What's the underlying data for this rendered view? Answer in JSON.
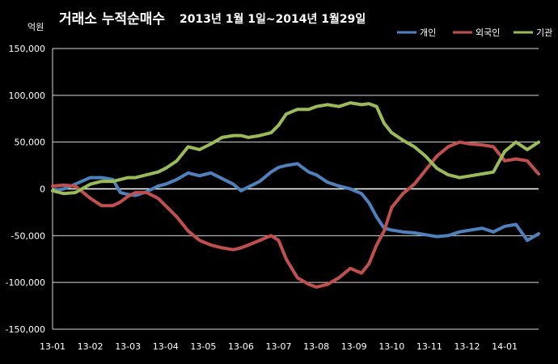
{
  "chart_data": {
    "type": "line",
    "title": "거래소  누적순매수",
    "subtitle": "2013년 1월 1일~2014년 1월29일",
    "ylabel": "억원",
    "xlabel": "",
    "ylim": [
      -150000,
      150000
    ],
    "yticks": [
      "150,000",
      "100,000",
      "50,000",
      "0",
      "-50,000",
      "-100,000",
      "-150,000"
    ],
    "ytick_values": [
      150000,
      100000,
      50000,
      0,
      -50000,
      -100000,
      -150000
    ],
    "categories": [
      "13-01",
      "13-02",
      "13-03",
      "13-04",
      "13-05",
      "13-06",
      "13-07",
      "13-08",
      "13-09",
      "13-10",
      "13-11",
      "13-12",
      "14-01"
    ],
    "grid": true,
    "legend": "top-right",
    "series": [
      {
        "name": "개인",
        "color": "#4f81bd",
        "x": [
          0,
          0.3,
          0.6,
          1.0,
          1.3,
          1.6,
          1.8,
          2.0,
          2.2,
          2.5,
          2.8,
          3.0,
          3.3,
          3.6,
          3.9,
          4.2,
          4.5,
          4.8,
          5.0,
          5.2,
          5.5,
          5.8,
          6.0,
          6.2,
          6.5,
          6.8,
          7.0,
          7.3,
          7.6,
          7.9,
          8.2,
          8.4,
          8.6,
          8.8,
          9.0,
          9.3,
          9.6,
          9.9,
          10.2,
          10.5,
          10.8,
          11.1,
          11.4,
          11.7,
          12.0,
          12.3,
          12.6,
          12.9
        ],
        "values": [
          -2000,
          0,
          5000,
          12000,
          12000,
          10000,
          -4000,
          -6000,
          -7000,
          -3000,
          3000,
          5000,
          10000,
          17000,
          14000,
          17000,
          11000,
          5000,
          -2000,
          2000,
          8000,
          18000,
          23000,
          25000,
          27000,
          18000,
          15000,
          7000,
          3000,
          0,
          -5000,
          -15000,
          -30000,
          -42000,
          -44000,
          -46000,
          -47000,
          -49000,
          -51000,
          -50000,
          -46000,
          -44000,
          -42000,
          -46000,
          -40000,
          -38000,
          -55000,
          -48000
        ]
      },
      {
        "name": "외국인",
        "color": "#c0504d",
        "x": [
          0,
          0.3,
          0.6,
          1.0,
          1.3,
          1.6,
          1.8,
          2.0,
          2.2,
          2.5,
          2.8,
          3.0,
          3.3,
          3.6,
          3.9,
          4.2,
          4.5,
          4.8,
          5.0,
          5.2,
          5.5,
          5.8,
          6.0,
          6.2,
          6.5,
          6.8,
          7.0,
          7.3,
          7.6,
          7.9,
          8.2,
          8.4,
          8.6,
          8.8,
          9.0,
          9.3,
          9.6,
          9.9,
          10.2,
          10.5,
          10.8,
          11.1,
          11.4,
          11.7,
          12.0,
          12.3,
          12.6,
          12.9
        ],
        "values": [
          3000,
          4000,
          3000,
          -10000,
          -18000,
          -18000,
          -14000,
          -8000,
          -4000,
          -4000,
          -10000,
          -18000,
          -30000,
          -45000,
          -55000,
          -60000,
          -63000,
          -65000,
          -63000,
          -60000,
          -55000,
          -50000,
          -55000,
          -75000,
          -95000,
          -102000,
          -105000,
          -102000,
          -95000,
          -85000,
          -90000,
          -80000,
          -60000,
          -45000,
          -20000,
          -5000,
          5000,
          20000,
          35000,
          45000,
          50000,
          48000,
          47000,
          45000,
          30000,
          32000,
          30000,
          16000
        ]
      },
      {
        "name": "기관",
        "color": "#9bbb59",
        "x": [
          0,
          0.3,
          0.6,
          1.0,
          1.3,
          1.6,
          1.8,
          2.0,
          2.2,
          2.5,
          2.8,
          3.0,
          3.3,
          3.6,
          3.9,
          4.2,
          4.5,
          4.8,
          5.0,
          5.2,
          5.5,
          5.8,
          6.0,
          6.2,
          6.5,
          6.8,
          7.0,
          7.3,
          7.6,
          7.9,
          8.2,
          8.4,
          8.6,
          8.8,
          9.0,
          9.3,
          9.6,
          9.9,
          10.2,
          10.5,
          10.8,
          11.1,
          11.4,
          11.7,
          12.0,
          12.3,
          12.6,
          12.9
        ],
        "values": [
          -2000,
          -5000,
          -4000,
          5000,
          8000,
          8000,
          10000,
          12000,
          12000,
          15000,
          18000,
          22000,
          30000,
          45000,
          42000,
          48000,
          55000,
          57000,
          57000,
          55000,
          57000,
          60000,
          68000,
          80000,
          85000,
          85000,
          88000,
          90000,
          88000,
          92000,
          90000,
          91000,
          88000,
          70000,
          60000,
          52000,
          45000,
          35000,
          22000,
          15000,
          12000,
          14000,
          16000,
          18000,
          40000,
          50000,
          42000,
          50000
        ]
      }
    ]
  }
}
